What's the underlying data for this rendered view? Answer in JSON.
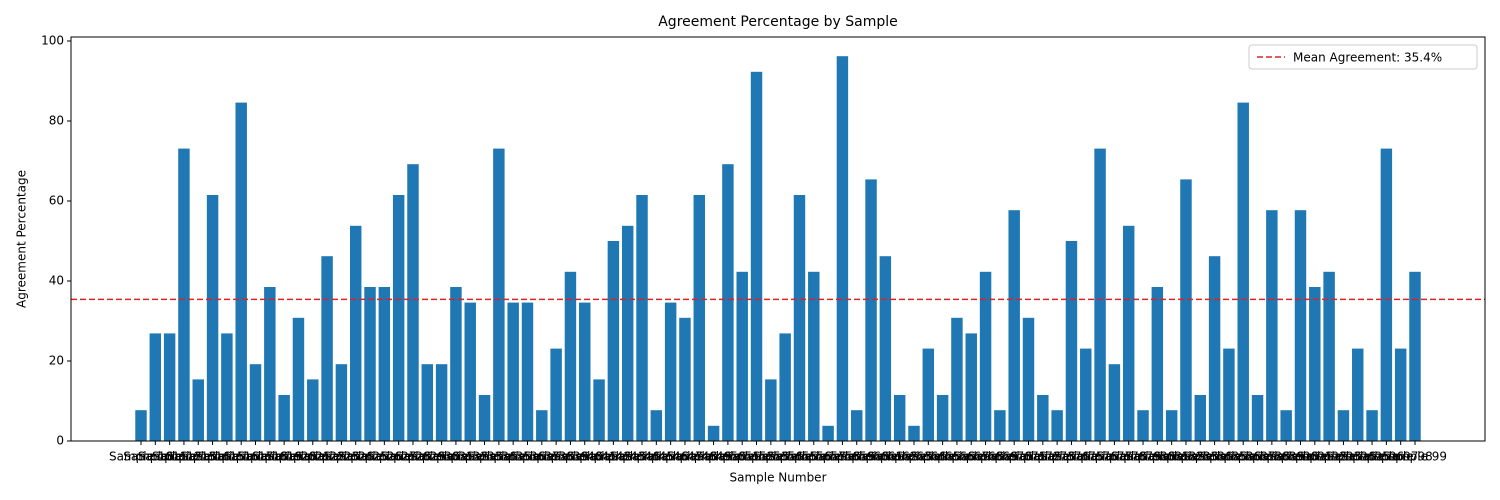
{
  "chart_data": {
    "type": "bar",
    "title": "Agreement Percentage by Sample",
    "x_label": "Sample Number",
    "y_label": "Agreement Percentage",
    "categories": [
      "Sample 10",
      "Sample 11",
      "Sample 12",
      "Sample 13",
      "Sample 14",
      "Sample 15",
      "Sample 16",
      "Sample 17",
      "Sample 18",
      "Sample 19",
      "Sample 20",
      "Sample 21",
      "Sample 22",
      "Sample 23",
      "Sample 24",
      "Sample 25",
      "Sample 26",
      "Sample 27",
      "Sample 28",
      "Sample 29",
      "Sample 30",
      "Sample 31",
      "Sample 32",
      "Sample 33",
      "Sample 34",
      "Sample 35",
      "Sample 36",
      "Sample 37",
      "Sample 38",
      "Sample 39",
      "Sample 40",
      "Sample 41",
      "Sample 42",
      "Sample 43",
      "Sample 44",
      "Sample 45",
      "Sample 46",
      "Sample 47",
      "Sample 48",
      "Sample 49",
      "Sample 50",
      "Sample 51",
      "Sample 52",
      "Sample 53",
      "Sample 54",
      "Sample 55",
      "Sample 56",
      "Sample 57",
      "Sample 58",
      "Sample 59",
      "Sample 60",
      "Sample 61",
      "Sample 62",
      "Sample 63",
      "Sample 64",
      "Sample 65",
      "Sample 66",
      "Sample 67",
      "Sample 68",
      "Sample 69",
      "Sample 70",
      "Sample 71",
      "Sample 72",
      "Sample 73",
      "Sample 74",
      "Sample 75",
      "Sample 76",
      "Sample 77",
      "Sample 78",
      "Sample 79",
      "Sample 80",
      "Sample 81",
      "Sample 82",
      "Sample 83",
      "Sample 84",
      "Sample 85",
      "Sample 86",
      "Sample 87",
      "Sample 88",
      "Sample 89",
      "Sample 90",
      "Sample 91",
      "Sample 92",
      "Sample 93",
      "Sample 94",
      "Sample 95",
      "Sample 96",
      "Sample 97",
      "Sample 98",
      "Sample 99"
    ],
    "values": [
      7.7,
      26.9,
      26.9,
      73.1,
      15.4,
      61.5,
      26.9,
      84.6,
      19.2,
      38.5,
      11.5,
      30.8,
      15.4,
      46.2,
      19.2,
      53.8,
      38.5,
      38.5,
      61.5,
      69.2,
      19.2,
      19.2,
      38.5,
      34.6,
      11.5,
      73.1,
      34.6,
      34.6,
      7.7,
      23.1,
      42.3,
      34.6,
      15.4,
      50,
      53.8,
      61.5,
      7.7,
      34.6,
      30.8,
      61.5,
      3.8,
      69.2,
      42.3,
      92.3,
      15.4,
      26.9,
      61.5,
      42.3,
      3.8,
      96.2,
      7.7,
      65.4,
      46.2,
      11.5,
      3.8,
      23.1,
      11.5,
      30.8,
      26.9,
      42.3,
      7.7,
      57.7,
      30.8,
      11.5,
      7.7,
      50,
      23.1,
      73.1,
      19.2,
      53.8,
      7.7,
      38.5,
      7.7,
      65.4,
      11.5,
      46.2,
      23.1,
      84.6,
      11.5,
      57.7,
      7.7,
      57.7,
      38.5,
      42.3,
      7.7,
      23.1,
      7.7,
      73.1,
      23.1,
      42.3
    ],
    "color": "#1f77b4",
    "mean_line": {
      "value": 35.4,
      "label": "Mean Agreement: 35.4%",
      "color": "#d62728"
    },
    "legend": "upper right",
    "ylim": [
      0,
      101
    ],
    "yticks": [
      0,
      20,
      40,
      60,
      80,
      100
    ]
  }
}
